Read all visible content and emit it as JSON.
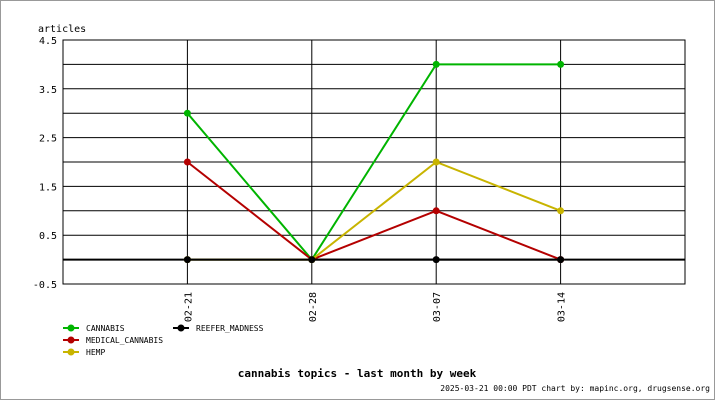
{
  "chart_data": {
    "type": "line",
    "title": "cannabis topics - last month by week",
    "ylabel": "articles",
    "footer": "2025-03-21 00:00 PDT  chart by: mapinc.org, drugsense.org",
    "categories": [
      "02-21",
      "02-28",
      "03-07",
      "03-14"
    ],
    "series": [
      {
        "name": "CANNABIS",
        "color": "#00b400",
        "values": [
          3,
          0,
          4,
          4
        ]
      },
      {
        "name": "MEDICAL_CANNABIS",
        "color": "#b40000",
        "values": [
          2,
          0,
          1,
          0
        ]
      },
      {
        "name": "HEMP",
        "color": "#c8b400",
        "values": [
          0,
          0,
          2,
          1
        ]
      },
      {
        "name": "REEFER_MADNESS",
        "color": "#000000",
        "values": [
          0,
          0,
          0,
          0
        ]
      }
    ],
    "ylim": [
      -0.5,
      4.5
    ],
    "yticks": [
      -0.5,
      0.5,
      1.5,
      2.5,
      3.5,
      4.5
    ],
    "yminor_grid": [
      0,
      1,
      2,
      3,
      4
    ],
    "grid": true
  }
}
